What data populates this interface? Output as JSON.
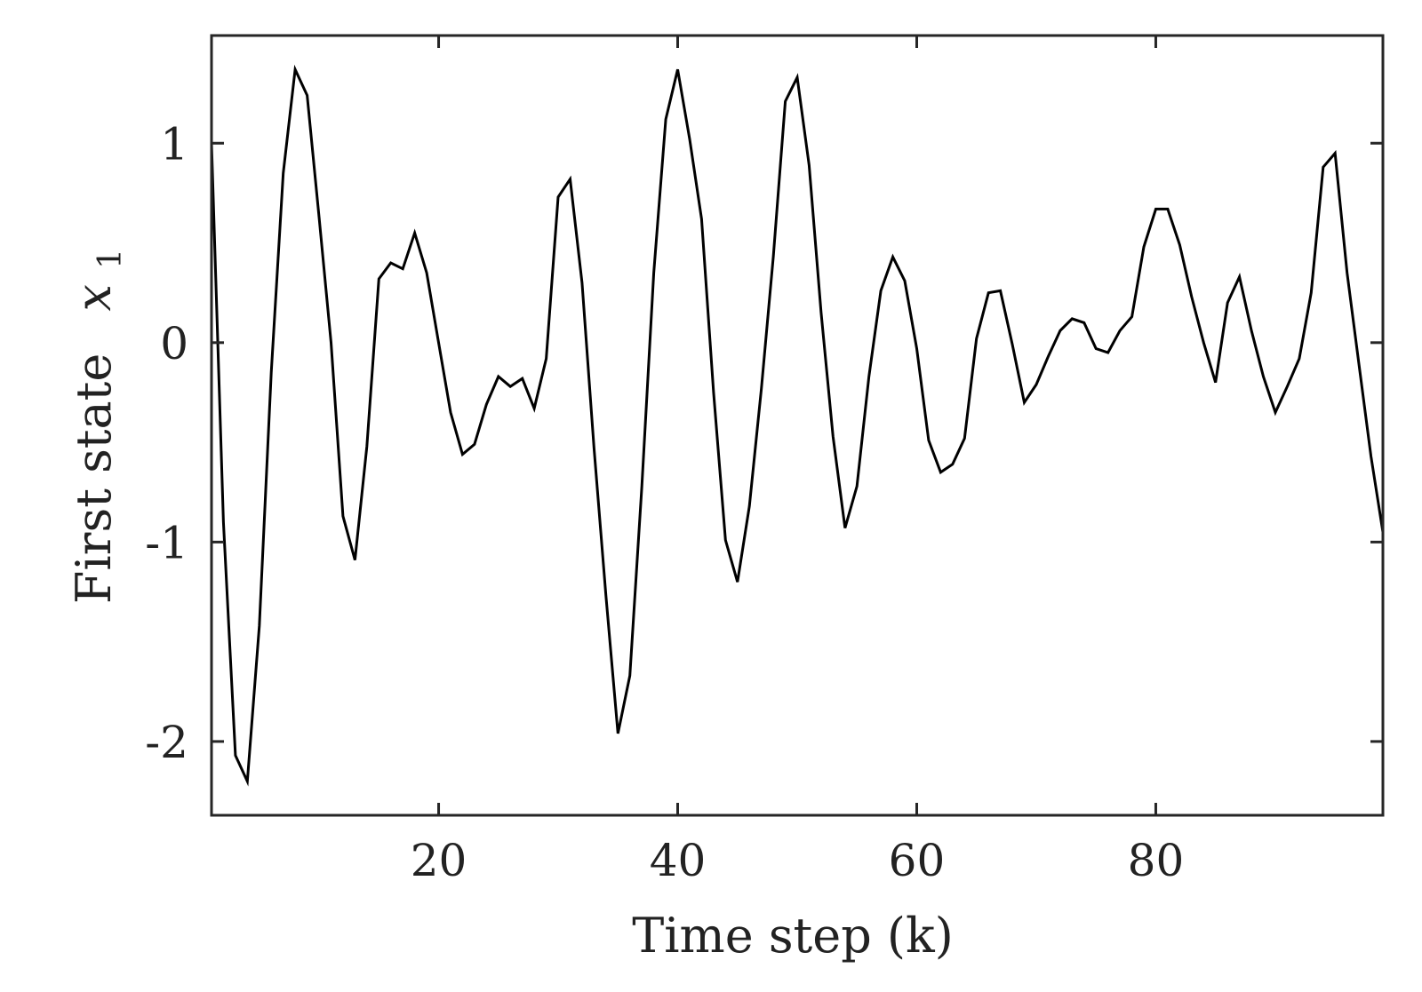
{
  "chart_data": {
    "type": "line",
    "xlabel": "Time step (k)",
    "ylabel_text": "First state",
    "ylabel_symbol": "x",
    "ylabel_subscript": "1",
    "xlim": [
      1,
      99
    ],
    "ylim": [
      -2.37,
      1.54
    ],
    "xticks": [
      20,
      40,
      60,
      80
    ],
    "xtick_labels": [
      "20",
      "40",
      "60",
      "80"
    ],
    "yticks": [
      -2,
      -1,
      0,
      1
    ],
    "ytick_labels": [
      "-2",
      "-1",
      "0",
      "1"
    ],
    "grid": false,
    "line_color": "#000000",
    "series": [
      {
        "x": [
          1,
          2,
          3,
          4,
          5,
          6,
          7,
          8,
          9,
          10,
          11,
          12,
          13,
          14,
          15,
          16,
          17,
          18,
          19,
          20,
          21,
          22,
          23,
          24,
          25,
          26,
          27,
          28,
          29,
          30,
          31,
          32,
          33,
          34,
          35,
          36,
          37,
          38,
          39,
          40,
          41,
          42,
          43,
          44,
          45,
          46,
          47,
          48,
          49,
          50,
          51,
          52,
          53,
          54,
          55,
          56,
          57,
          58,
          59,
          60,
          61,
          62,
          63,
          64,
          65,
          66,
          67,
          68,
          69,
          70,
          71,
          72,
          73,
          74,
          75,
          76,
          77,
          78,
          79,
          80,
          81,
          82,
          83,
          84,
          85,
          86,
          87,
          88,
          89,
          90,
          91,
          92,
          93,
          94,
          95,
          96,
          97,
          98,
          99
        ],
        "y": [
          1.0,
          -0.9,
          -2.07,
          -2.2,
          -1.42,
          -0.15,
          0.85,
          1.37,
          1.24,
          0.63,
          0.0,
          -0.87,
          -1.09,
          -0.52,
          0.32,
          0.4,
          0.37,
          0.55,
          0.35,
          0.0,
          -0.35,
          -0.56,
          -0.51,
          -0.31,
          -0.17,
          -0.22,
          -0.18,
          -0.33,
          -0.08,
          0.73,
          0.82,
          0.3,
          -0.53,
          -1.27,
          -1.96,
          -1.67,
          -0.72,
          0.35,
          1.12,
          1.37,
          1.02,
          0.62,
          -0.25,
          -0.99,
          -1.2,
          -0.82,
          -0.23,
          0.43,
          1.21,
          1.33,
          0.89,
          0.15,
          -0.47,
          -0.93,
          -0.72,
          -0.17,
          0.26,
          0.43,
          0.31,
          -0.03,
          -0.49,
          -0.65,
          -0.61,
          -0.48,
          0.02,
          0.25,
          0.26,
          -0.01,
          -0.3,
          -0.21,
          -0.07,
          0.06,
          0.12,
          0.1,
          -0.03,
          -0.05,
          0.06,
          0.13,
          0.48,
          0.67,
          0.67,
          0.49,
          0.23,
          0.0,
          -0.2,
          0.2,
          0.33,
          0.06,
          -0.17,
          -0.35,
          -0.22,
          -0.08,
          0.25,
          0.88,
          0.95,
          0.35,
          -0.11,
          -0.57,
          -0.95
        ]
      }
    ]
  }
}
